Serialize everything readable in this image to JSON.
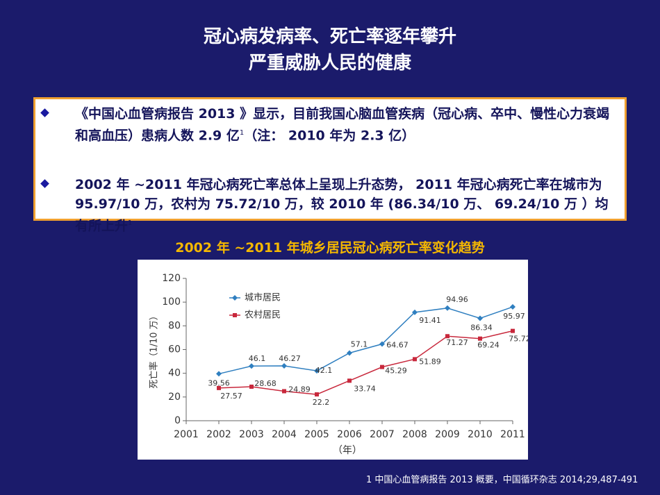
{
  "slide": {
    "title_lines": [
      "冠心病发病率、死亡率逐年攀升",
      "严重威胁人民的健康"
    ],
    "bullets": [
      {
        "text": "《中国心血管病报告 2013 》显示，目前我国心脑血管疾病（冠心病、卒中、慢性心力衰竭和高血压）患病人数 2.9 亿",
        "note": "1",
        "tail": "（注： 2010 年为 2.3 亿）"
      },
      {
        "text": "2002 年 ~2011 年冠心病死亡率总体上呈现上升态势， 2011 年冠心病死亡率在城市为  95.97/10 万，农村为  75.72/10 万，较 2010 年 (86.34/10 万、 69.24/10 万  ）均有所上升",
        "note": "1"
      }
    ],
    "footnote": "1  中国心血管病报告 2013 概要，中国循环杂志  2014;29,487-491"
  },
  "chart_data": {
    "type": "line",
    "title": "2002 年 ~2011 年城乡居民冠心病死亡率变化趋势",
    "x_label": "（年）",
    "y_label": "死亡率（1/10 万）",
    "x": [
      2002,
      2003,
      2004,
      2005,
      2006,
      2007,
      2008,
      2009,
      2010,
      2011
    ],
    "series": [
      {
        "name": "城市居民",
        "color": "#2f7fc0",
        "marker": "diamond",
        "values": [
          39.56,
          46.1,
          46.27,
          42.1,
          57.1,
          64.67,
          91.41,
          94.96,
          86.34,
          95.97
        ]
      },
      {
        "name": "农村居民",
        "color": "#c8283c",
        "marker": "square",
        "values": [
          27.57,
          28.68,
          24.89,
          22.2,
          33.74,
          45.29,
          51.89,
          71.27,
          69.24,
          75.72
        ]
      }
    ],
    "xlim": [
      2001,
      2011
    ],
    "xticks": [
      2001,
      2002,
      2003,
      2004,
      2005,
      2006,
      2007,
      2008,
      2009,
      2010,
      2011
    ],
    "ylim": [
      0,
      120
    ],
    "yticks": [
      0,
      20,
      40,
      60,
      80,
      100,
      120
    ],
    "grid": false
  }
}
